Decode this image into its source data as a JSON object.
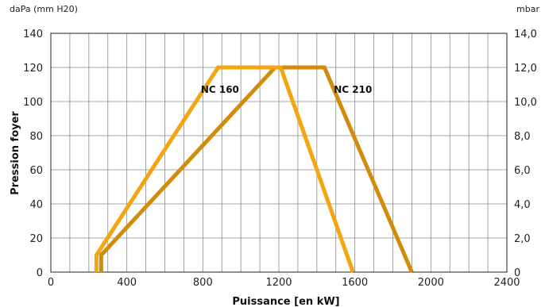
{
  "chart_data": {
    "type": "line",
    "xlabel": "Puissance [en kW]",
    "ylabel": "Pression foyer",
    "y_left_unit": "daPa (mm H20)",
    "y_right_unit": "mbar",
    "xlim": [
      0,
      2400
    ],
    "ylim": [
      0,
      140
    ],
    "x_ticks": [
      "0",
      "400",
      "800",
      "1200",
      "1600",
      "2000",
      "2400"
    ],
    "y_ticks_left": [
      "0",
      "20",
      "40",
      "60",
      "80",
      "100",
      "120",
      "140"
    ],
    "y_ticks_right": [
      "0",
      "2,0",
      "4,0",
      "6,0",
      "8,0",
      "10,0",
      "12,0",
      "14,0"
    ],
    "grid": true,
    "series": [
      {
        "name": "NC 160",
        "color": "#f3a512",
        "points": [
          [
            240,
            0
          ],
          [
            240,
            10
          ],
          [
            880,
            120
          ],
          [
            1210,
            120
          ],
          [
            1590,
            0
          ]
        ],
        "label_pos": [
          890,
          107
        ]
      },
      {
        "name": "NC 210",
        "color": "#d18c0c",
        "points": [
          [
            265,
            0
          ],
          [
            265,
            10
          ],
          [
            1180,
            120
          ],
          [
            1440,
            120
          ],
          [
            1900,
            0
          ]
        ],
        "label_pos": [
          1590,
          107
        ]
      }
    ]
  }
}
